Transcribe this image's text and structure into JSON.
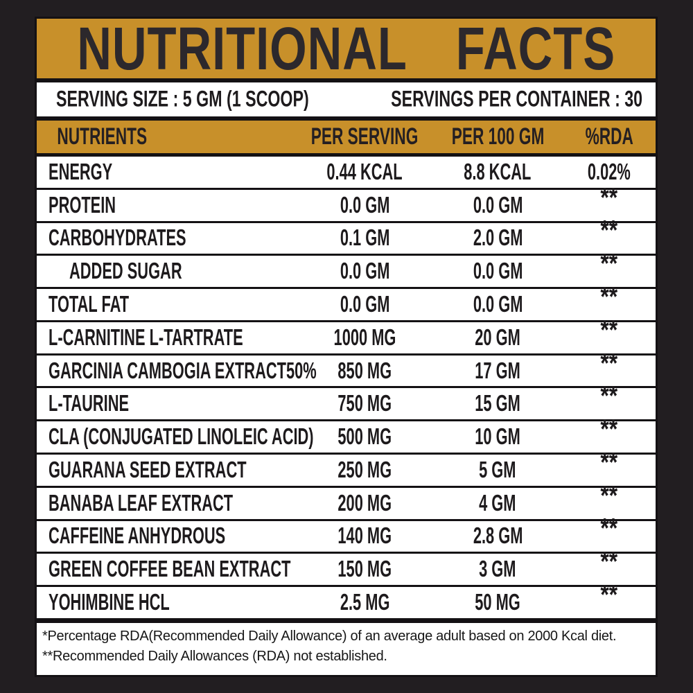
{
  "colors": {
    "gold": "#c8902a",
    "background": "#221e21",
    "separator": "#141114",
    "text_dark": "#1d1a1c",
    "panel_white": "#ffffff"
  },
  "title": "NUTRITIONAL FACTS",
  "serving": {
    "size_label": "SERVING SIZE : 5 GM (1 SCOOP)",
    "per_container_label": "SERVINGS PER CONTAINER : 30"
  },
  "table": {
    "headers": [
      "NUTRIENTS",
      "PER SERVING",
      "PER 100 GM",
      "%RDA"
    ],
    "rows": [
      {
        "nutrient": "ENERGY",
        "per_serving": "0.44 KCAL",
        "per_100gm": "8.8 KCAL",
        "rda": "0.02%",
        "indent": false
      },
      {
        "nutrient": "PROTEIN",
        "per_serving": "0.0 GM",
        "per_100gm": "0.0 GM",
        "rda": "**",
        "indent": false
      },
      {
        "nutrient": "CARBOHYDRATES",
        "per_serving": "0.1 GM",
        "per_100gm": "2.0 GM",
        "rda": "**",
        "indent": false
      },
      {
        "nutrient": "ADDED SUGAR",
        "per_serving": "0.0 GM",
        "per_100gm": "0.0 GM",
        "rda": "**",
        "indent": true
      },
      {
        "nutrient": "TOTAL FAT",
        "per_serving": "0.0 GM",
        "per_100gm": "0.0 GM",
        "rda": "**",
        "indent": false
      },
      {
        "nutrient": "L-CARNITINE L-TARTRATE",
        "per_serving": "1000 MG",
        "per_100gm": "20 GM",
        "rda": "**",
        "indent": false
      },
      {
        "nutrient": "GARCINIA CAMBOGIA EXTRACT50%",
        "per_serving": "850 MG",
        "per_100gm": "17 GM",
        "rda": "**",
        "indent": false
      },
      {
        "nutrient": "L-TAURINE",
        "per_serving": "750 MG",
        "per_100gm": "15 GM",
        "rda": "**",
        "indent": false
      },
      {
        "nutrient": "CLA (CONJUGATED LINOLEIC ACID)",
        "per_serving": "500 MG",
        "per_100gm": "10 GM",
        "rda": "**",
        "indent": false
      },
      {
        "nutrient": "GUARANA SEED EXTRACT",
        "per_serving": "250 MG",
        "per_100gm": "5 GM",
        "rda": "**",
        "indent": false
      },
      {
        "nutrient": "BANABA LEAF EXTRACT",
        "per_serving": "200 MG",
        "per_100gm": "4 GM",
        "rda": "**",
        "indent": false
      },
      {
        "nutrient": "CAFFEINE ANHYDROUS",
        "per_serving": "140 MG",
        "per_100gm": "2.8 GM",
        "rda": "**",
        "indent": false
      },
      {
        "nutrient": "GREEN COFFEE BEAN EXTRACT",
        "per_serving": "150 MG",
        "per_100gm": "3 GM",
        "rda": "**",
        "indent": false
      },
      {
        "nutrient": "YOHIMBINE HCL",
        "per_serving": "2.5 MG",
        "per_100gm": "50 MG",
        "rda": "**",
        "indent": false
      }
    ]
  },
  "footnotes": [
    "*Percentage RDA(Recommended Daily Allowance) of an average adult based on 2000 Kcal diet.",
    "**Recommended Daily Allowances (RDA) not established."
  ]
}
